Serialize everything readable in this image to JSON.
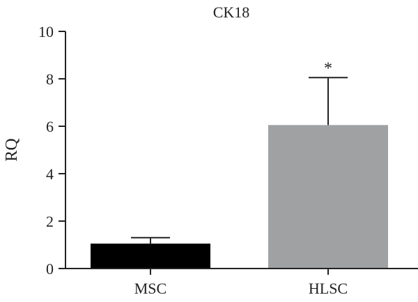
{
  "chart_data": {
    "type": "bar",
    "title": "CK18",
    "xlabel": "",
    "ylabel": "RQ",
    "categories": [
      "MSC",
      "HLSC"
    ],
    "values": [
      1.05,
      6.05
    ],
    "error": [
      0.25,
      2.0
    ],
    "annotations": [
      "",
      "*"
    ],
    "bar_colors": [
      "#000000",
      "#a0a1a3"
    ],
    "ylim": [
      0,
      10
    ],
    "yticks": [
      0,
      2,
      4,
      6,
      8,
      10
    ],
    "grid": false,
    "legend": "none"
  }
}
